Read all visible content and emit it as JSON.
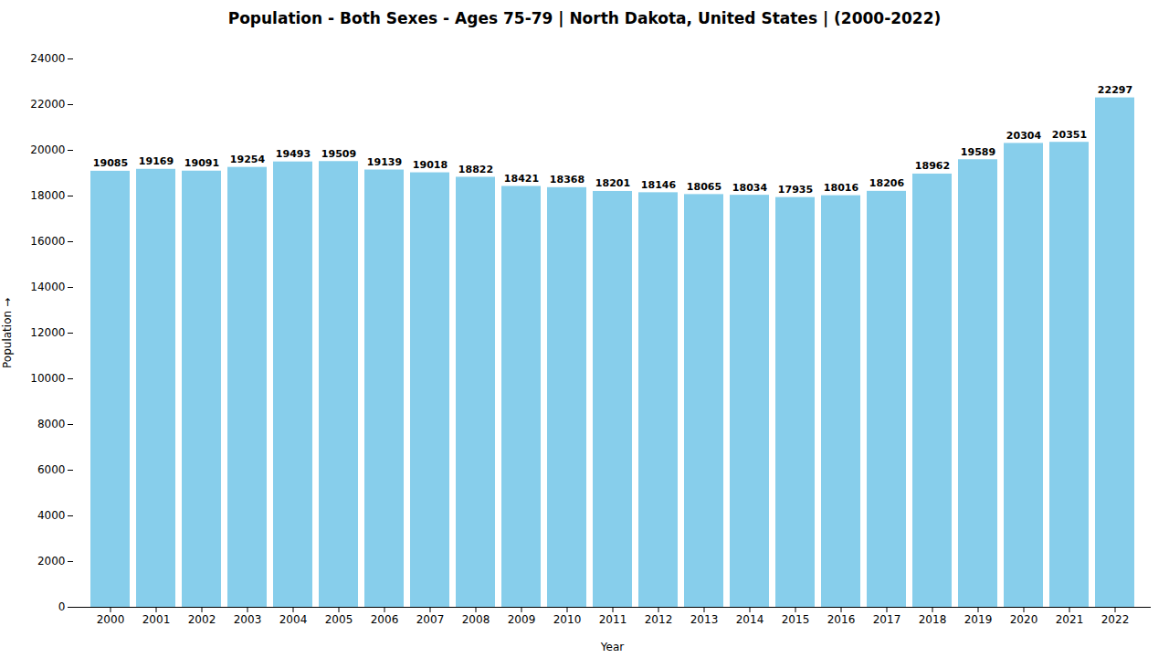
{
  "chart_data": {
    "type": "bar",
    "title": "Population - Both Sexes - Ages 75-79 | North Dakota, United States |  (2000-2022)",
    "xlabel": "Year",
    "ylabel": "Population",
    "categories": [
      "2000",
      "2001",
      "2002",
      "2003",
      "2004",
      "2005",
      "2006",
      "2007",
      "2008",
      "2009",
      "2010",
      "2011",
      "2012",
      "2013",
      "2014",
      "2015",
      "2016",
      "2017",
      "2018",
      "2019",
      "2020",
      "2021",
      "2022"
    ],
    "values": [
      19085,
      19169,
      19091,
      19254,
      19493,
      19509,
      19139,
      19018,
      18822,
      18421,
      18368,
      18201,
      18146,
      18065,
      18034,
      17935,
      18016,
      18206,
      18962,
      19589,
      20304,
      20351,
      22297
    ],
    "color": "#87CEEB",
    "ylim": [
      0,
      24000
    ],
    "yticks": [
      0,
      2000,
      4000,
      6000,
      8000,
      10000,
      12000,
      14000,
      16000,
      18000,
      20000,
      22000,
      24000
    ],
    "data_labels": true,
    "grid": false
  }
}
